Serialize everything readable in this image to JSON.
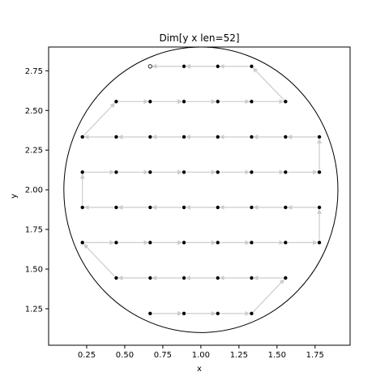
{
  "chart_data": {
    "type": "scatter",
    "title": "Dim[y x len=52]",
    "xlabel": "x",
    "ylabel": "y",
    "xlim": [
      0.0,
      1.98
    ],
    "ylim": [
      1.02,
      2.9
    ],
    "xticks": [
      "0.25",
      "0.50",
      "0.75",
      "1.00",
      "1.25",
      "1.50",
      "1.75"
    ],
    "xtick_values": [
      0.25,
      0.5,
      0.75,
      1.0,
      1.25,
      1.5,
      1.75
    ],
    "yticks": [
      "1.25",
      "1.50",
      "1.75",
      "2.00",
      "2.25",
      "2.50",
      "2.75"
    ],
    "ytick_values": [
      1.25,
      1.5,
      1.75,
      2.0,
      2.25,
      2.5,
      2.75
    ],
    "grid": false,
    "circle": {
      "cx": 1.0,
      "cy": 2.0,
      "r": 0.9,
      "color": "#000000"
    },
    "point_color": "#000000",
    "path_color": "#cccccc",
    "rows": [
      {
        "y": 1.22,
        "x": [
          0.667,
          0.889,
          1.111,
          1.333
        ]
      },
      {
        "y": 1.444,
        "x": [
          0.444,
          0.667,
          0.889,
          1.111,
          1.333,
          1.556
        ]
      },
      {
        "y": 1.667,
        "x": [
          0.222,
          0.444,
          0.667,
          0.889,
          1.111,
          1.333,
          1.556,
          1.778
        ]
      },
      {
        "y": 1.889,
        "x": [
          0.222,
          0.444,
          0.667,
          0.889,
          1.111,
          1.333,
          1.556,
          1.778
        ]
      },
      {
        "y": 2.111,
        "x": [
          0.222,
          0.444,
          0.667,
          0.889,
          1.111,
          1.333,
          1.556,
          1.778
        ]
      },
      {
        "y": 2.333,
        "x": [
          0.222,
          0.444,
          0.667,
          0.889,
          1.111,
          1.333,
          1.556,
          1.778
        ]
      },
      {
        "y": 2.556,
        "x": [
          0.444,
          0.667,
          0.889,
          1.111,
          1.333,
          1.556
        ]
      },
      {
        "y": 2.778,
        "x": [
          0.667,
          0.889,
          1.111,
          1.333
        ]
      }
    ]
  }
}
